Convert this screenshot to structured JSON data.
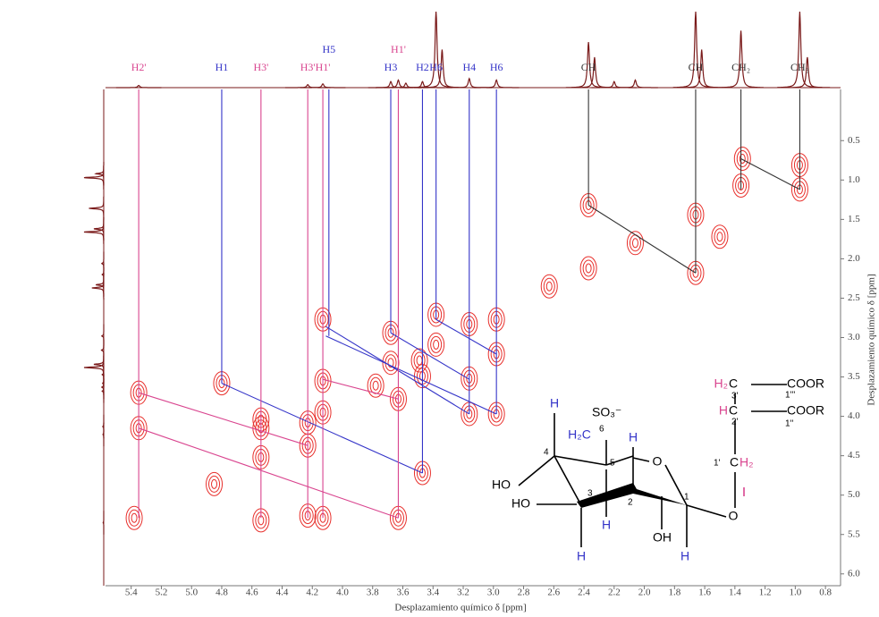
{
  "chart_data": {
    "type": "nmr-2d",
    "x_label": "Desplazamiento químico δ [ppm]",
    "y_label": "Desplazamiento químico δ [ppm]",
    "xlim": [
      5.57,
      0.7
    ],
    "ylim": [
      -0.15,
      6.15
    ],
    "xticks": [
      5.4,
      5.2,
      {
        "value": 5,
        "label": "5.0"
      },
      4.8,
      4.6,
      4.4,
      4.2,
      {
        "value": 4,
        "label": "4.0"
      },
      3.8,
      3.6,
      3.4,
      3.2,
      {
        "value": 3,
        "label": "3.0"
      },
      2.8,
      2.6,
      2.4,
      2.2,
      {
        "value": 2,
        "label": "2.0"
      },
      1.8,
      1.6,
      1.4,
      1.2,
      {
        "value": 1,
        "label": "1.0"
      },
      0.8
    ],
    "yticks": [
      0.5,
      {
        "value": 1,
        "label": "1.0"
      },
      1.5,
      {
        "value": 2,
        "label": "2.0"
      },
      2.5,
      {
        "value": 3,
        "label": "3.0"
      },
      3.5,
      {
        "value": 4,
        "label": "4.0"
      },
      4.5,
      {
        "value": 5,
        "label": "5.0"
      },
      5.5,
      {
        "value": 6,
        "label": "6.0"
      }
    ],
    "projection_color": "#7a1a1a",
    "contour_color": "#e8302c",
    "projection_peaks": {
      "x": [
        5.35,
        4.23,
        4.13,
        3.68,
        3.63,
        3.58,
        3.47,
        3.38,
        3.34,
        3.16,
        2.98,
        2.37,
        2.33,
        2.2,
        2.06,
        1.66,
        1.62,
        1.36,
        0.97,
        0.92
      ],
      "heights": [
        3,
        4,
        5,
        8,
        10,
        6,
        8,
        100,
        50,
        12,
        10,
        60,
        40,
        8,
        10,
        100,
        50,
        75,
        100,
        40
      ]
    },
    "cross_peaks": {
      "x": [
        5.35,
        5.35,
        5.38,
        4.8,
        4.85,
        4.54,
        4.54,
        4.54,
        4.54,
        4.23,
        4.23,
        4.23,
        4.13,
        4.13,
        4.13,
        4.13,
        3.68,
        3.68,
        3.63,
        3.63,
        3.47,
        3.47,
        3.38,
        3.38,
        3.49,
        3.16,
        3.16,
        3.16,
        2.98,
        2.98,
        2.98,
        3.78,
        2.37,
        2.37,
        2.63,
        2.06,
        1.66,
        1.66,
        1.36,
        1.35,
        0.97,
        0.97,
        1.5
      ],
      "y": [
        3.7,
        4.15,
        5.29,
        3.58,
        4.86,
        4.04,
        4.15,
        4.52,
        5.32,
        4.08,
        4.37,
        5.26,
        2.77,
        3.55,
        3.95,
        5.29,
        2.94,
        3.32,
        3.78,
        5.29,
        3.49,
        4.72,
        2.71,
        3.09,
        3.29,
        2.83,
        3.52,
        3.97,
        2.77,
        3.21,
        3.97,
        3.61,
        1.32,
        2.12,
        2.35,
        1.8,
        1.44,
        2.18,
        1.07,
        0.73,
        0.81,
        1.12,
        1.72
      ]
    },
    "peak_labels": [
      {
        "text": "H2'",
        "x": 5.35,
        "y": 5.29,
        "color": "#d9458f"
      },
      {
        "text": "H1",
        "x": 4.8,
        "y": 3.58,
        "color": "#3434c8"
      },
      {
        "text": "H3'",
        "x": 4.54,
        "y": 5.29,
        "color": "#d9458f"
      },
      {
        "text": "H3'",
        "x": 4.23,
        "y": 5.29,
        "color": "#d9458f"
      },
      {
        "text": "H1'",
        "x": 4.13,
        "y": 5.29,
        "color": "#d9458f"
      },
      {
        "text": "H5",
        "x": 4.09,
        "y": 2.98,
        "color": "#3434c8"
      },
      {
        "text": "H3",
        "x": 3.68,
        "y": 2.94,
        "color": "#3434c8"
      },
      {
        "text": "H1'",
        "x": 3.63,
        "y": 5.29,
        "color": "#d9458f"
      },
      {
        "text": "H2",
        "x": 3.47,
        "y": 4.72,
        "color": "#3434c8"
      },
      {
        "text": "H6",
        "x": 3.38,
        "y": 2.77,
        "color": "#3434c8"
      },
      {
        "text": "H4",
        "x": 3.16,
        "y": 3.97,
        "color": "#3434c8"
      },
      {
        "text": "H6",
        "x": 2.98,
        "y": 3.97,
        "color": "#3434c8"
      },
      {
        "text": "CH",
        "x": 2.37,
        "y": 1.32,
        "color": "#333333"
      },
      {
        "text": "CH",
        "x": 1.66,
        "y": 2.18,
        "color": "#333333"
      },
      {
        "text": "CH₂",
        "x": 1.36,
        "y": 1.12,
        "color": "#333333"
      },
      {
        "text": "CH₃",
        "x": 0.97,
        "y": 1.12,
        "color": "#333333"
      }
    ],
    "connections": [
      {
        "color": "#3434c8",
        "x": [
          4.8,
          3.47
        ],
        "y": [
          3.58,
          4.72
        ]
      },
      {
        "color": "#3434c8",
        "x": [
          4.11,
          3.16
        ],
        "y": [
          2.86,
          3.97
        ]
      },
      {
        "color": "#3434c8",
        "x": [
          4.11,
          2.98
        ],
        "y": [
          2.98,
          3.97
        ]
      },
      {
        "color": "#3434c8",
        "x": [
          3.68,
          3.16
        ],
        "y": [
          2.94,
          3.53
        ]
      },
      {
        "color": "#3434c8",
        "x": [
          3.38,
          2.98
        ],
        "y": [
          2.77,
          3.21
        ]
      },
      {
        "color": "#d9458f",
        "x": [
          5.35,
          4.23
        ],
        "y": [
          3.7,
          4.37
        ]
      },
      {
        "color": "#d9458f",
        "x": [
          5.35,
          3.63
        ],
        "y": [
          4.15,
          5.29
        ]
      },
      {
        "color": "#d9458f",
        "x": [
          4.13,
          3.63
        ],
        "y": [
          3.53,
          3.78
        ]
      },
      {
        "color": "#333333",
        "x": [
          2.37,
          1.66
        ],
        "y": [
          1.32,
          2.18
        ]
      },
      {
        "color": "#333333",
        "x": [
          1.36,
          0.97
        ],
        "y": [
          0.73,
          1.12
        ]
      }
    ]
  },
  "structure": {
    "labels": [
      "H",
      "H₂C",
      "6",
      "SO₃⁻",
      "H",
      "O",
      "4",
      "5",
      "HO",
      "3",
      "2",
      "1",
      "HO",
      "OH",
      "H",
      "H",
      "H",
      "O",
      "H₂",
      "C",
      "3'",
      "COOR",
      "1'''",
      "H",
      "C",
      "2'",
      "COOR",
      "1''",
      "1'",
      "C",
      "H₂"
    ]
  }
}
